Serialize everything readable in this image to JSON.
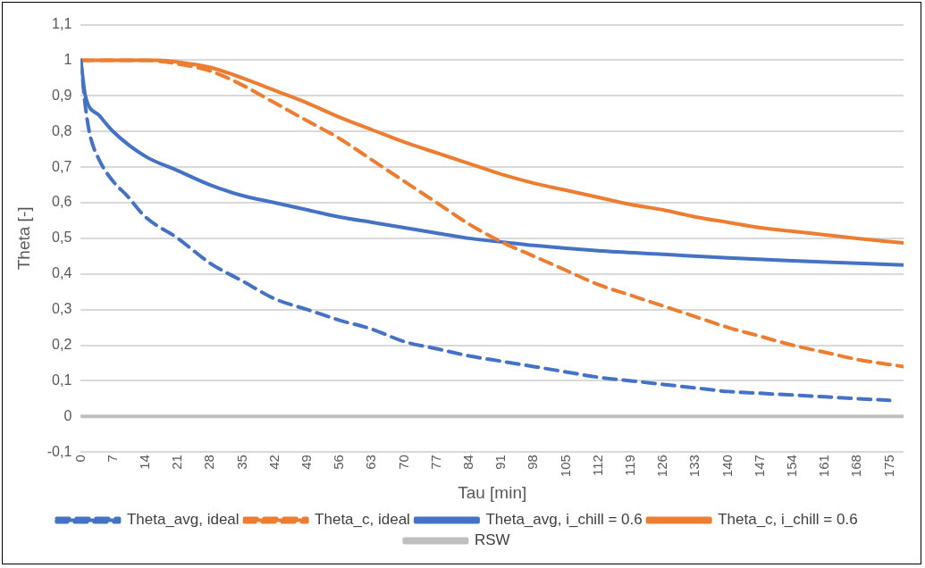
{
  "chart_data": {
    "type": "line",
    "xlabel": "Tau [min]",
    "ylabel": "Theta [-]",
    "xlim": [
      0,
      178
    ],
    "xticks": [
      0,
      7,
      14,
      21,
      28,
      35,
      42,
      49,
      56,
      63,
      70,
      77,
      84,
      91,
      98,
      105,
      112,
      119,
      126,
      133,
      140,
      147,
      154,
      161,
      168,
      175
    ],
    "ylim": [
      -0.1,
      1.1
    ],
    "yticks": [
      {
        "value": -0.1,
        "label": "-0,1"
      },
      0,
      {
        "value": 0.1,
        "label": "0,1"
      },
      {
        "value": 0.2,
        "label": "0,2"
      },
      {
        "value": 0.3,
        "label": "0,3"
      },
      {
        "value": 0.4,
        "label": "0,4"
      },
      {
        "value": 0.5,
        "label": "0,5"
      },
      {
        "value": 0.6,
        "label": "0,6"
      },
      {
        "value": 0.7,
        "label": "0,7"
      },
      {
        "value": 0.8,
        "label": "0,8"
      },
      {
        "value": 0.9,
        "label": "0,9"
      },
      1,
      {
        "value": 1.1,
        "label": "1,1"
      }
    ],
    "grid": "y",
    "legend": "bottom",
    "marker": "none",
    "series": [
      {
        "name": "Theta_avg, ideal",
        "color": "#4472c4",
        "line_style": "dashed",
        "x": [
          0,
          1,
          2,
          4,
          7,
          10,
          14,
          21,
          28,
          35,
          42,
          49,
          56,
          63,
          70,
          77,
          84,
          91,
          98,
          105,
          112,
          119,
          126,
          133,
          140,
          147,
          154,
          161,
          168,
          175
        ],
        "values": [
          1,
          0.87,
          0.79,
          0.72,
          0.66,
          0.62,
          0.56,
          0.5,
          0.43,
          0.38,
          0.33,
          0.3,
          0.27,
          0.245,
          0.21,
          0.19,
          0.17,
          0.155,
          0.14,
          0.125,
          0.11,
          0.1,
          0.09,
          0.08,
          0.07,
          0.065,
          0.06,
          0.055,
          0.05,
          0.045
        ]
      },
      {
        "name": "Theta_c, ideal",
        "color": "#ed7d31",
        "line_style": "dashed",
        "x": [
          0,
          14,
          21,
          28,
          35,
          42,
          49,
          56,
          63,
          70,
          77,
          84,
          91,
          98,
          105,
          112,
          119,
          126,
          133,
          140,
          147,
          154,
          161,
          168,
          178
        ],
        "values": [
          1,
          1,
          0.99,
          0.97,
          0.93,
          0.88,
          0.83,
          0.78,
          0.72,
          0.66,
          0.6,
          0.54,
          0.49,
          0.45,
          0.41,
          0.37,
          0.34,
          0.31,
          0.28,
          0.25,
          0.225,
          0.2,
          0.18,
          0.16,
          0.14
        ]
      },
      {
        "name": "Theta_avg, i_chill = 0.6",
        "color": "#4472c4",
        "line_style": "solid",
        "x": [
          0,
          1,
          4,
          7,
          14,
          21,
          28,
          35,
          42,
          49,
          56,
          63,
          70,
          77,
          84,
          91,
          98,
          112,
          126,
          140,
          154,
          168,
          178
        ],
        "values": [
          1,
          0.9,
          0.845,
          0.8,
          0.73,
          0.69,
          0.65,
          0.62,
          0.6,
          0.58,
          0.56,
          0.545,
          0.53,
          0.515,
          0.5,
          0.49,
          0.48,
          0.465,
          0.455,
          0.445,
          0.437,
          0.43,
          0.425
        ]
      },
      {
        "name": "Theta_c, i_chill = 0.6",
        "color": "#ed7d31",
        "line_style": "solid",
        "x": [
          0,
          17,
          21,
          28,
          35,
          42,
          49,
          56,
          63,
          70,
          77,
          84,
          91,
          98,
          105,
          112,
          119,
          126,
          133,
          140,
          147,
          154,
          161,
          168,
          178
        ],
        "values": [
          1,
          1,
          0.995,
          0.98,
          0.95,
          0.915,
          0.88,
          0.84,
          0.805,
          0.77,
          0.74,
          0.71,
          0.68,
          0.655,
          0.635,
          0.615,
          0.595,
          0.58,
          0.56,
          0.545,
          0.53,
          0.52,
          0.51,
          0.5,
          0.487
        ]
      },
      {
        "name": "RSW",
        "color": "#bfbfbf",
        "line_style": "solid",
        "x": [
          0,
          178
        ],
        "values": [
          0,
          0
        ]
      }
    ]
  }
}
